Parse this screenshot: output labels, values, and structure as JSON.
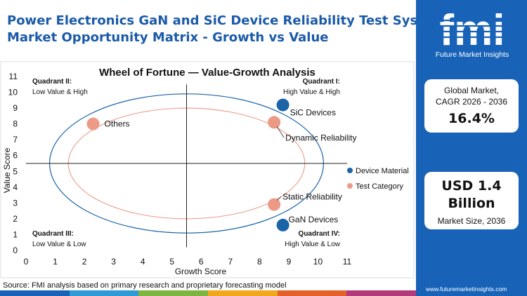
{
  "header": {
    "title_line1": "Power Electronics GaN and SiC Device Reliability Test Systems",
    "title_line2": "Market Opportunity Matrix - Growth vs Value"
  },
  "brand": {
    "logo_text": "fmi",
    "logo_sub": "Future Market Insights",
    "url": "www.futuremarketinsights.com"
  },
  "stats": {
    "cagr_label_line1": "Global Market,",
    "cagr_label_line2": "CAGR 2026 - 2036",
    "cagr_value": "16.4%",
    "size_value_line1": "USD 1.4",
    "size_value_line2": "Billion",
    "size_label": "Market Size, 2036"
  },
  "footer": {
    "source": "Source: FMI analysis based on primary research and proprietary forecasting model"
  },
  "colors": {
    "brand_blue": "#1863b8",
    "device": "#1c64a8",
    "test": "#ec9a86",
    "title": "#1a5aa8"
  },
  "chart_data": {
    "type": "scatter",
    "title": "Wheel of Fortune — Value-Growth  Analysis",
    "xlabel": "Growth Score",
    "ylabel": "Value Score",
    "xlim": [
      0,
      11
    ],
    "ylim": [
      0,
      11
    ],
    "xticks": [
      0,
      1,
      2,
      3,
      4,
      5,
      6,
      7,
      8,
      9,
      10,
      11
    ],
    "yticks": [
      0,
      1,
      2,
      3,
      4,
      5,
      6,
      7,
      8,
      9,
      10,
      11
    ],
    "grid": false,
    "legend_position": "right",
    "quadrant_divider": {
      "x": 5.5,
      "y": 5.5
    },
    "quadrants": [
      {
        "name": "Quadrant II:",
        "desc": "Low Value & High"
      },
      {
        "name": "Quadrant I:",
        "desc": "High Value & High"
      },
      {
        "name": "Quadrant III:",
        "desc": "Low Value & Low"
      },
      {
        "name": "Quadrant IV:",
        "desc": "High Value & Low"
      }
    ],
    "series": [
      {
        "name": "Device Material",
        "color": "#1c64a8",
        "points": [
          {
            "label": "SiC Devices",
            "x": 8.8,
            "y": 9.2
          },
          {
            "label": "GaN Devices",
            "x": 8.8,
            "y": 1.6
          }
        ]
      },
      {
        "name": "Test Category",
        "color": "#ec9a86",
        "points": [
          {
            "label": "Others",
            "x": 2.3,
            "y": 8.0
          },
          {
            "label": "Dynamic Reliability",
            "x": 8.5,
            "y": 8.1
          },
          {
            "label": "Static Reliability",
            "x": 8.5,
            "y": 2.9
          }
        ]
      }
    ]
  }
}
